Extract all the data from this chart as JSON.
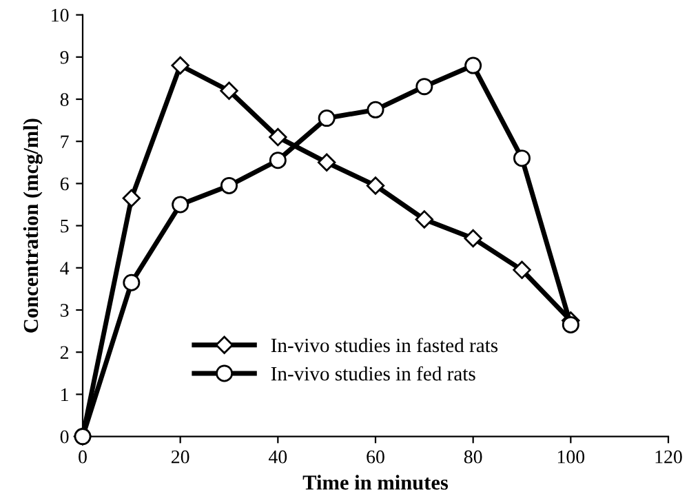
{
  "chart_data": {
    "type": "line",
    "xlabel": "Time in minutes",
    "ylabel": "Concentration (mcg/ml)",
    "xlim": [
      0,
      120
    ],
    "xticks": [
      0,
      20,
      40,
      60,
      80,
      100,
      120
    ],
    "ylim": [
      0,
      10
    ],
    "yticks": [
      0,
      1,
      2,
      3,
      4,
      5,
      6,
      7,
      8,
      9,
      10
    ],
    "grid": false,
    "legend": "bottom",
    "line_style": "solid",
    "series": [
      {
        "name": "In-vivo studies in fasted rats",
        "color": "#000000",
        "marker": "diamond",
        "x": [
          0,
          10,
          20,
          30,
          40,
          50,
          60,
          70,
          80,
          90,
          100
        ],
        "values": [
          0,
          5.65,
          8.8,
          8.2,
          7.1,
          6.5,
          5.95,
          5.15,
          4.7,
          3.95,
          2.75
        ]
      },
      {
        "name": "In-vivo studies in fed rats",
        "color": "#000000",
        "marker": "circle",
        "x": [
          0,
          10,
          20,
          30,
          40,
          50,
          60,
          70,
          80,
          90,
          100
        ],
        "values": [
          0,
          3.65,
          5.5,
          5.95,
          6.55,
          7.55,
          7.75,
          8.3,
          8.8,
          6.6,
          2.65
        ]
      }
    ]
  }
}
